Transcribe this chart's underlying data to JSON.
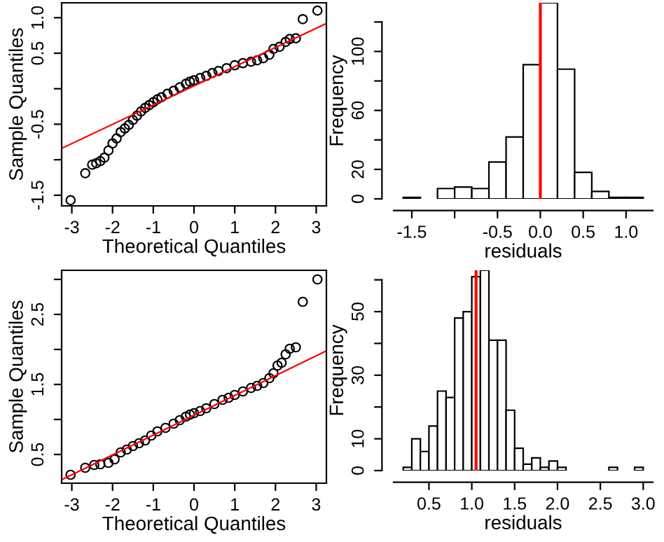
{
  "chart_data": [
    {
      "type": "scatter",
      "xlabel": "Theoretical Quantiles",
      "ylabel": "Sample Quantiles",
      "xlim": [
        -3.25,
        3.25
      ],
      "ylim": [
        -1.65,
        1.21
      ],
      "xticks": [
        -3,
        -2,
        -1,
        0,
        1,
        2,
        3
      ],
      "yticks": [
        -1.5,
        {
          "value": -1.0,
          "label": null
        },
        -0.5,
        {
          "value": 0.0,
          "label": null
        },
        0.5,
        {
          "value": 1.0,
          "label": "1.0"
        }
      ],
      "grid": false,
      "series": [
        {
          "type": "scatter",
          "marker": "circle",
          "color": "#000000",
          "x": [
            -3.03,
            -2.67,
            -2.5,
            -2.4,
            -2.3,
            -2.2,
            -2.1,
            -2.0,
            -1.9,
            -1.8,
            -1.7,
            -1.6,
            -1.5,
            -1.4,
            -1.3,
            -1.2,
            -1.1,
            -1.0,
            -0.9,
            -0.8,
            -0.65,
            -0.5,
            -0.35,
            -0.2,
            -0.1,
            0,
            0.15,
            0.3,
            0.45,
            0.6,
            0.8,
            1.0,
            1.2,
            1.4,
            1.55,
            1.7,
            1.85,
            1.95,
            2.1,
            2.25,
            2.35,
            2.5,
            2.67,
            3.03
          ],
          "values": [
            -1.57,
            -1.19,
            -1.07,
            -1.05,
            -1.02,
            -0.97,
            -0.87,
            -0.77,
            -0.7,
            -0.61,
            -0.56,
            -0.51,
            -0.44,
            -0.38,
            -0.32,
            -0.27,
            -0.23,
            -0.19,
            -0.15,
            -0.12,
            -0.07,
            -0.03,
            0.02,
            0.07,
            0.1,
            0.12,
            0.15,
            0.18,
            0.22,
            0.25,
            0.29,
            0.33,
            0.36,
            0.38,
            0.4,
            0.43,
            0.48,
            0.56,
            0.59,
            0.66,
            0.7,
            0.71,
            0.98,
            1.1
          ]
        },
        {
          "type": "line",
          "color": "#ff0000",
          "x": [
            -3.25,
            3.25
          ],
          "values": [
            -0.84,
            0.92
          ]
        }
      ]
    },
    {
      "type": "histogram",
      "xlabel": "residuals",
      "ylabel": "Frequency",
      "color": "#ffffff",
      "xlim": [
        -1.712,
        1.312
      ],
      "ylim": [
        0,
        133
      ],
      "xticks": [
        -1.5,
        {
          "value": -1.0,
          "label": null
        },
        -0.5,
        {
          "value": 0.0,
          "label": "0.0"
        },
        0.5,
        {
          "value": 1.0,
          "label": "1.0"
        }
      ],
      "yticks": [
        0,
        20,
        {
          "value": 40,
          "label": null
        },
        60,
        {
          "value": 80,
          "label": null
        },
        100,
        {
          "value": 120,
          "label": null
        }
      ],
      "grid": false,
      "bins": [
        -1.6,
        -1.4,
        -1.2,
        -1.0,
        -0.8,
        -0.6,
        -0.4,
        -0.2,
        0.0,
        0.2,
        0.4,
        0.6,
        0.8,
        1.0,
        1.2
      ],
      "values": [
        1,
        0,
        7,
        8,
        7,
        25,
        42,
        91,
        133,
        88,
        18,
        5,
        1,
        1
      ],
      "ref_lines": [
        {
          "axis": "x",
          "value": 0.0,
          "color": "#ff0000"
        }
      ]
    },
    {
      "type": "scatter",
      "xlabel": "Theoretical Quantiles",
      "ylabel": "Sample Quantiles",
      "xlim": [
        -3.25,
        3.25
      ],
      "ylim": [
        0.09,
        3.13
      ],
      "xticks": [
        -3,
        -2,
        -1,
        0,
        1,
        2,
        3
      ],
      "yticks": [
        0.5,
        {
          "value": 1.0,
          "label": null
        },
        1.5,
        {
          "value": 2.0,
          "label": null
        },
        2.5,
        {
          "value": 3.0,
          "label": null
        }
      ],
      "grid": false,
      "series": [
        {
          "type": "scatter",
          "marker": "circle",
          "color": "#000000",
          "x": [
            -3.03,
            -2.67,
            -2.45,
            -2.3,
            -2.1,
            -1.95,
            -1.8,
            -1.65,
            -1.5,
            -1.35,
            -1.2,
            -1.05,
            -0.9,
            -0.7,
            -0.5,
            -0.35,
            -0.2,
            -0.1,
            0,
            0.15,
            0.3,
            0.5,
            0.7,
            0.85,
            1.0,
            1.2,
            1.4,
            1.55,
            1.7,
            1.85,
            1.95,
            2.05,
            2.15,
            2.25,
            2.35,
            2.5,
            2.67,
            3.03
          ],
          "values": [
            0.21,
            0.31,
            0.35,
            0.36,
            0.38,
            0.43,
            0.53,
            0.57,
            0.62,
            0.66,
            0.7,
            0.77,
            0.83,
            0.88,
            0.94,
            0.99,
            1.04,
            1.07,
            1.09,
            1.12,
            1.16,
            1.22,
            1.28,
            1.31,
            1.35,
            1.4,
            1.45,
            1.48,
            1.52,
            1.59,
            1.66,
            1.77,
            1.81,
            1.93,
            2.01,
            2.03,
            2.68,
            3.0
          ]
        },
        {
          "type": "line",
          "color": "#ff0000",
          "x": [
            -3.25,
            3.25
          ],
          "values": [
            0.14,
            1.98
          ]
        }
      ]
    },
    {
      "type": "histogram",
      "xlabel": "residuals",
      "ylabel": "Frequency",
      "color": "#ffffff",
      "xlim": [
        0.088,
        3.112
      ],
      "ylim": [
        0,
        63
      ],
      "xticks": [
        0.5,
        {
          "value": 1.0,
          "label": "1.0"
        },
        1.5,
        {
          "value": 2.0,
          "label": "2.0"
        },
        2.5,
        {
          "value": 3.0,
          "label": "3.0"
        }
      ],
      "yticks": [
        0,
        10,
        {
          "value": 20,
          "label": null
        },
        30,
        {
          "value": 40,
          "label": null
        },
        50,
        {
          "value": 60,
          "label": null
        }
      ],
      "grid": false,
      "bins": [
        0.2,
        0.3,
        0.4,
        0.5,
        0.6,
        0.7,
        0.8,
        0.9,
        1.0,
        1.1,
        1.2,
        1.3,
        1.4,
        1.5,
        1.6,
        1.7,
        1.8,
        1.9,
        2.0,
        2.1,
        2.2,
        2.3,
        2.4,
        2.5,
        2.6,
        2.7,
        2.8,
        2.9,
        3.0
      ],
      "values": [
        1,
        10,
        6,
        14,
        25,
        23,
        48,
        50,
        61,
        63,
        41,
        41,
        19,
        7,
        2,
        4,
        1,
        3,
        1,
        0,
        0,
        0,
        0,
        0,
        1,
        0,
        0,
        1
      ],
      "ref_lines": [
        {
          "axis": "x",
          "value": 1.05,
          "color": "#ff0000"
        }
      ]
    }
  ]
}
